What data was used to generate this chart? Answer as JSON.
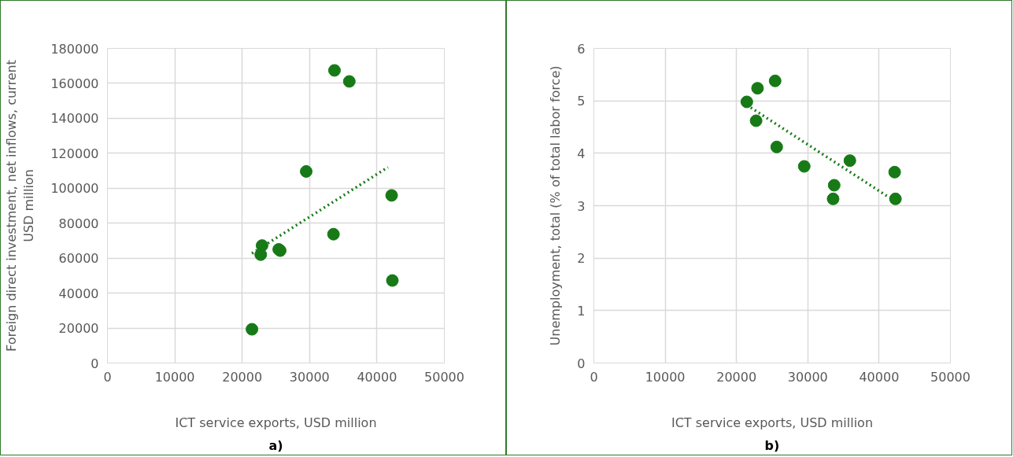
{
  "chart_data": [
    {
      "type": "scatter",
      "xlabel": "ICT service exports, USD million",
      "ylabel": "Foreign direct investment, net inflows, current USD million",
      "annotations": [
        "a)"
      ],
      "x": [
        21450,
        22750,
        22950,
        25420,
        25640,
        29500,
        33550,
        33700,
        35900,
        42180,
        42290
      ],
      "series": [
        {
          "color": "#177a17",
          "marker": "circle",
          "values": [
            19300,
            62000,
            67200,
            65000,
            64300,
            109600,
            73700,
            167400,
            161100,
            95900,
            47200
          ]
        },
        {
          "type": "line",
          "color": "#177a17",
          "line_style": "dotted",
          "x": [
            21450,
            41630
          ],
          "values": [
            62700,
            112000
          ]
        }
      ],
      "xlim": [
        0,
        50000
      ],
      "xticks": [
        0,
        10000,
        20000,
        30000,
        40000,
        50000
      ],
      "ylim": [
        0,
        180000
      ],
      "yticks": [
        0,
        20000,
        40000,
        60000,
        80000,
        100000,
        120000,
        140000,
        160000,
        180000
      ],
      "grid": true
    },
    {
      "type": "scatter",
      "xlabel": "ICT service exports, USD million",
      "ylabel": "Unemployment, total (% of total labor force)",
      "annotations": [
        "b)"
      ],
      "x": [
        21450,
        22750,
        22950,
        25420,
        25640,
        29500,
        33550,
        33700,
        35900,
        42180,
        42290
      ],
      "series": [
        {
          "color": "#177a17",
          "marker": "circle",
          "values": [
            4.98,
            4.62,
            5.24,
            5.38,
            4.12,
            3.75,
            3.13,
            3.39,
            3.86,
            3.64,
            3.13
          ]
        },
        {
          "type": "line",
          "color": "#177a17",
          "line_style": "dotted",
          "x": [
            21450,
            41270
          ],
          "values": [
            4.92,
            3.17
          ]
        }
      ],
      "xlim": [
        0,
        50000
      ],
      "xticks": [
        0,
        10000,
        20000,
        30000,
        40000,
        50000
      ],
      "ylim": [
        0,
        6
      ],
      "yticks": [
        0,
        1,
        2,
        3,
        4,
        5,
        6
      ],
      "grid": true
    }
  ]
}
